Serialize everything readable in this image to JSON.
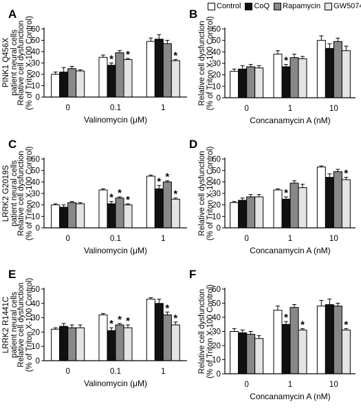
{
  "legend": [
    {
      "label": "Control",
      "color": "#ffffff"
    },
    {
      "label": "CoQ",
      "color": "#111111"
    },
    {
      "label": "Rapamycin",
      "color": "#888888"
    },
    {
      "label": "GW5074",
      "color": "#e4e4e4"
    }
  ],
  "row_labels": [
    {
      "line1": "PINK1 Q456X",
      "line2": "patient neural cells"
    },
    {
      "line1": "LRRK2 G2019S",
      "line2": "patient neural cells"
    },
    {
      "line1": "LRRK2 R1441C",
      "line2": "patient neural cells"
    }
  ],
  "chart_data": [
    {
      "panel": "A",
      "type": "bar",
      "categories": [
        "0",
        "0.1",
        "1"
      ],
      "xlabel": "Valinomycin (μM)",
      "ylabel_line1": "Relative cell dysfunction",
      "ylabel_line2": "(% of Triton X-100 Control)",
      "ylim": [
        0,
        60
      ],
      "yticks": [
        0,
        10,
        20,
        30,
        40,
        50,
        60
      ],
      "series": [
        {
          "name": "Control",
          "values": [
            20,
            35,
            49
          ],
          "errors": [
            2,
            2,
            3
          ]
        },
        {
          "name": "CoQ",
          "values": [
            22,
            28,
            51
          ],
          "errors": [
            4,
            2,
            4
          ]
        },
        {
          "name": "Rapamycin",
          "values": [
            25,
            39,
            47
          ],
          "errors": [
            2,
            2,
            3
          ]
        },
        {
          "name": "GW5074",
          "values": [
            23,
            33,
            32
          ],
          "errors": [
            1,
            1,
            1
          ]
        }
      ],
      "significance": [
        {
          "category": 1,
          "series": 1,
          "label": "*"
        },
        {
          "category": 1,
          "series": 3,
          "label": "*"
        },
        {
          "category": 2,
          "series": 3,
          "label": "*"
        }
      ]
    },
    {
      "panel": "B",
      "type": "bar",
      "categories": [
        "0",
        "1",
        "10"
      ],
      "xlabel": "Concanamycin A (nM)",
      "ylabel_line1": "Relative cell dysfunction",
      "ylabel_line2": "(% of Triton X-100 Control)",
      "ylim": [
        0,
        60
      ],
      "yticks": [
        0,
        10,
        20,
        30,
        40,
        50,
        60
      ],
      "series": [
        {
          "name": "Control",
          "values": [
            23,
            38,
            50
          ],
          "errors": [
            2,
            3,
            4
          ]
        },
        {
          "name": "CoQ",
          "values": [
            25,
            27,
            43
          ],
          "errors": [
            3,
            2,
            4
          ]
        },
        {
          "name": "Rapamycin",
          "values": [
            27,
            35,
            49
          ],
          "errors": [
            2,
            3,
            3
          ]
        },
        {
          "name": "GW5074",
          "values": [
            26,
            34,
            41
          ],
          "errors": [
            2,
            2,
            4
          ]
        }
      ],
      "significance": [
        {
          "category": 1,
          "series": 1,
          "label": "*"
        }
      ]
    },
    {
      "panel": "C",
      "type": "bar",
      "categories": [
        "0",
        "0.1",
        "1"
      ],
      "xlabel": "Valinomycin (μM)",
      "ylabel_line1": "Relative cell dysfunction",
      "ylabel_line2": "(% of Triton X-100 Control)",
      "ylim": [
        0,
        60
      ],
      "yticks": [
        0,
        10,
        20,
        30,
        40,
        50,
        60
      ],
      "series": [
        {
          "name": "Control",
          "values": [
            20,
            33,
            45
          ],
          "errors": [
            1,
            1,
            1
          ]
        },
        {
          "name": "CoQ",
          "values": [
            18,
            21,
            34
          ],
          "errors": [
            2,
            2,
            3
          ]
        },
        {
          "name": "Rapamycin",
          "values": [
            22,
            26,
            40
          ],
          "errors": [
            1,
            1,
            1
          ]
        },
        {
          "name": "GW5074",
          "values": [
            21,
            20,
            25
          ],
          "errors": [
            1,
            1,
            1
          ]
        }
      ],
      "significance": [
        {
          "category": 1,
          "series": 1,
          "label": "*"
        },
        {
          "category": 1,
          "series": 2,
          "label": "*"
        },
        {
          "category": 1,
          "series": 3,
          "label": "*"
        },
        {
          "category": 2,
          "series": 1,
          "label": "*"
        },
        {
          "category": 2,
          "series": 2,
          "label": "*"
        },
        {
          "category": 2,
          "series": 3,
          "label": "*"
        }
      ]
    },
    {
      "panel": "D",
      "type": "bar",
      "categories": [
        "0",
        "1",
        "10"
      ],
      "xlabel": "Concanamycin A (nM)",
      "ylabel_line1": "Relative cell dysfunction",
      "ylabel_line2": "(% of Triton X-100 Control)",
      "ylim": [
        0,
        60
      ],
      "yticks": [
        0,
        10,
        20,
        30,
        40,
        50,
        60
      ],
      "series": [
        {
          "name": "Control",
          "values": [
            22,
            33,
            53
          ],
          "errors": [
            1,
            1,
            1
          ]
        },
        {
          "name": "CoQ",
          "values": [
            24,
            25,
            44
          ],
          "errors": [
            2,
            2,
            3
          ]
        },
        {
          "name": "Rapamycin",
          "values": [
            27,
            39,
            49
          ],
          "errors": [
            2,
            2,
            2
          ]
        },
        {
          "name": "GW5074",
          "values": [
            27,
            35,
            42
          ],
          "errors": [
            2,
            3,
            2
          ]
        }
      ],
      "significance": [
        {
          "category": 1,
          "series": 1,
          "label": "*"
        },
        {
          "category": 2,
          "series": 3,
          "label": "*"
        }
      ]
    },
    {
      "panel": "E",
      "type": "bar",
      "categories": [
        "0",
        "0.1",
        "1"
      ],
      "xlabel": "Valinomycin (μM)",
      "ylabel_line1": "Relative cell dysfunction",
      "ylabel_line2": "(% of Triton X-100 Control)",
      "ylim": [
        0,
        50
      ],
      "yticks": [
        0,
        10,
        20,
        30,
        40,
        50
      ],
      "series": [
        {
          "name": "Control",
          "values": [
            22,
            32,
            43
          ],
          "errors": [
            1,
            1,
            1
          ]
        },
        {
          "name": "CoQ",
          "values": [
            24,
            21,
            40
          ],
          "errors": [
            2,
            2,
            3
          ]
        },
        {
          "name": "Rapamycin",
          "values": [
            23,
            25,
            32
          ],
          "errors": [
            2,
            1,
            2
          ]
        },
        {
          "name": "GW5074",
          "values": [
            23,
            23,
            25
          ],
          "errors": [
            2,
            2,
            2
          ]
        }
      ],
      "significance": [
        {
          "category": 1,
          "series": 1,
          "label": "*"
        },
        {
          "category": 1,
          "series": 2,
          "label": "*"
        },
        {
          "category": 1,
          "series": 3,
          "label": "*"
        },
        {
          "category": 2,
          "series": 2,
          "label": "*"
        },
        {
          "category": 2,
          "series": 3,
          "label": "*"
        }
      ]
    },
    {
      "panel": "F",
      "type": "bar",
      "categories": [
        "0",
        "1",
        "10"
      ],
      "xlabel": "Concanamycin A (nM)",
      "ylabel_line1": "Relative cell dysfunction",
      "ylabel_line2": "(% of Triton X-100 Control)",
      "ylim": [
        0,
        60
      ],
      "yticks": [
        0,
        10,
        20,
        30,
        40,
        50,
        60
      ],
      "series": [
        {
          "name": "Control",
          "values": [
            30,
            45,
            48
          ],
          "errors": [
            2,
            3,
            4
          ]
        },
        {
          "name": "CoQ",
          "values": [
            29,
            35,
            49
          ],
          "errors": [
            2,
            2,
            4
          ]
        },
        {
          "name": "Rapamycin",
          "values": [
            28,
            47,
            48
          ],
          "errors": [
            2,
            2,
            2
          ]
        },
        {
          "name": "GW5074",
          "values": [
            25,
            31,
            31
          ],
          "errors": [
            2,
            1,
            1
          ]
        }
      ],
      "significance": [
        {
          "category": 1,
          "series": 1,
          "label": "*"
        },
        {
          "category": 1,
          "series": 3,
          "label": "*"
        },
        {
          "category": 2,
          "series": 3,
          "label": "*"
        }
      ]
    }
  ]
}
